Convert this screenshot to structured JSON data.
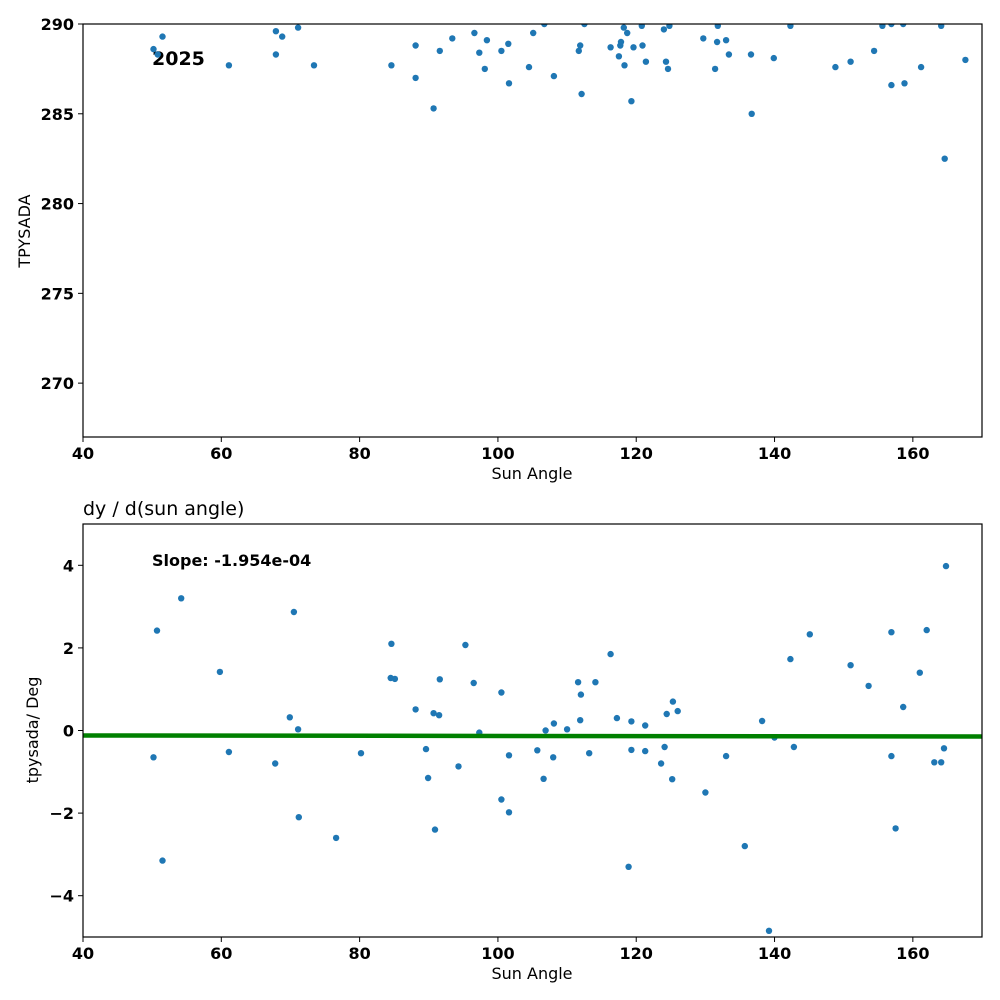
{
  "chart_data": [
    {
      "type": "scatter",
      "title": "",
      "xlabel": "Sun Angle",
      "ylabel": "TPYSADA",
      "xlim": [
        40,
        170
      ],
      "ylim": [
        267,
        290
      ],
      "xticks": [
        "40",
        "60",
        "80",
        "100",
        "120",
        "140",
        "160"
      ],
      "yticks": [
        "270",
        "275",
        "280",
        "285",
        "290"
      ],
      "annotation": "2025",
      "point_color": "#1f77b4",
      "grid": false,
      "points": [
        [
          50.2,
          288.6
        ],
        [
          50.8,
          288.3
        ],
        [
          51.5,
          289.3
        ],
        [
          61.1,
          287.7
        ],
        [
          67.9,
          289.6
        ],
        [
          67.9,
          288.3
        ],
        [
          68.8,
          289.3
        ],
        [
          71.1,
          289.8
        ],
        [
          73.4,
          287.7
        ],
        [
          84.6,
          287.7
        ],
        [
          88.1,
          288.8
        ],
        [
          88.1,
          287.0
        ],
        [
          90.7,
          285.3
        ],
        [
          91.6,
          288.5
        ],
        [
          93.4,
          289.2
        ],
        [
          96.6,
          289.5
        ],
        [
          97.3,
          288.4
        ],
        [
          98.1,
          287.5
        ],
        [
          98.4,
          289.1
        ],
        [
          100.5,
          288.5
        ],
        [
          101.5,
          288.9
        ],
        [
          101.6,
          286.7
        ],
        [
          104.5,
          287.6
        ],
        [
          105.1,
          289.5
        ],
        [
          106.7,
          290.0
        ],
        [
          108.1,
          287.1
        ],
        [
          111.7,
          288.5
        ],
        [
          111.9,
          288.8
        ],
        [
          112.1,
          286.1
        ],
        [
          112.5,
          290.0
        ],
        [
          116.3,
          288.7
        ],
        [
          117.5,
          288.2
        ],
        [
          117.7,
          288.8
        ],
        [
          117.8,
          289.0
        ],
        [
          118.2,
          289.8
        ],
        [
          118.3,
          287.7
        ],
        [
          118.7,
          289.5
        ],
        [
          119.3,
          285.7
        ],
        [
          119.6,
          288.7
        ],
        [
          120.8,
          289.9
        ],
        [
          120.9,
          288.8
        ],
        [
          121.4,
          287.9
        ],
        [
          124.0,
          289.7
        ],
        [
          124.3,
          287.9
        ],
        [
          124.6,
          287.5
        ],
        [
          124.8,
          289.9
        ],
        [
          129.7,
          289.2
        ],
        [
          131.4,
          287.5
        ],
        [
          131.7,
          289.0
        ],
        [
          131.8,
          289.9
        ],
        [
          133.0,
          289.1
        ],
        [
          133.4,
          288.3
        ],
        [
          136.6,
          288.3
        ],
        [
          136.7,
          285.0
        ],
        [
          139.9,
          288.1
        ],
        [
          142.3,
          289.9
        ],
        [
          148.8,
          287.6
        ],
        [
          151.0,
          287.9
        ],
        [
          154.4,
          288.5
        ],
        [
          155.6,
          289.9
        ],
        [
          156.9,
          290.0
        ],
        [
          156.9,
          286.6
        ],
        [
          158.6,
          290.0
        ],
        [
          158.8,
          286.7
        ],
        [
          161.2,
          287.6
        ],
        [
          164.1,
          289.9
        ],
        [
          164.6,
          282.5
        ],
        [
          167.6,
          288.0
        ]
      ]
    },
    {
      "type": "scatter",
      "title": "dy / d(sun angle)",
      "xlabel": "Sun Angle",
      "ylabel": "tpysada/ Deg",
      "xlim": [
        40,
        170
      ],
      "ylim": [
        -5,
        5
      ],
      "xticks": [
        "40",
        "60",
        "80",
        "100",
        "120",
        "140",
        "160"
      ],
      "yticks": [
        "−4",
        "−2",
        "0",
        "2",
        "4"
      ],
      "annotation": "Slope: -1.954e-04",
      "point_color": "#1f77b4",
      "fit_color": "#008000",
      "grid": false,
      "fit_line": [
        [
          40,
          -0.12
        ],
        [
          170,
          -0.145
        ]
      ],
      "points": [
        [
          50.2,
          -0.65
        ],
        [
          50.7,
          2.42
        ],
        [
          51.5,
          -3.15
        ],
        [
          54.2,
          3.2
        ],
        [
          59.8,
          1.42
        ],
        [
          61.1,
          -0.52
        ],
        [
          67.8,
          -0.8
        ],
        [
          69.9,
          0.32
        ],
        [
          70.5,
          2.87
        ],
        [
          71.1,
          0.03
        ],
        [
          71.2,
          -2.1
        ],
        [
          76.6,
          -2.6
        ],
        [
          80.2,
          -0.55
        ],
        [
          84.6,
          2.1
        ],
        [
          84.5,
          1.27
        ],
        [
          85.1,
          1.25
        ],
        [
          88.1,
          0.51
        ],
        [
          89.6,
          -0.45
        ],
        [
          89.9,
          -1.15
        ],
        [
          90.7,
          0.42
        ],
        [
          90.9,
          -2.4
        ],
        [
          91.5,
          0.37
        ],
        [
          91.6,
          1.24
        ],
        [
          94.3,
          -0.87
        ],
        [
          95.3,
          2.07
        ],
        [
          96.5,
          1.15
        ],
        [
          97.3,
          -0.05
        ],
        [
          100.5,
          0.92
        ],
        [
          100.5,
          -1.67
        ],
        [
          101.6,
          -0.6
        ],
        [
          101.6,
          -1.98
        ],
        [
          105.7,
          -0.48
        ],
        [
          106.6,
          -1.17
        ],
        [
          106.9,
          0.0
        ],
        [
          108.0,
          -0.65
        ],
        [
          108.1,
          0.17
        ],
        [
          110.0,
          0.03
        ],
        [
          111.6,
          1.17
        ],
        [
          111.9,
          0.25
        ],
        [
          112.0,
          0.87
        ],
        [
          113.2,
          -0.55
        ],
        [
          114.1,
          1.17
        ],
        [
          116.3,
          1.85
        ],
        [
          117.2,
          0.3
        ],
        [
          118.9,
          -3.3
        ],
        [
          119.3,
          0.22
        ],
        [
          119.3,
          -0.47
        ],
        [
          121.3,
          0.12
        ],
        [
          121.3,
          -0.5
        ],
        [
          123.6,
          -0.8
        ],
        [
          124.1,
          -0.4
        ],
        [
          124.4,
          0.4
        ],
        [
          125.2,
          -1.18
        ],
        [
          125.3,
          0.7
        ],
        [
          126.0,
          0.47
        ],
        [
          130.0,
          -1.5
        ],
        [
          133.0,
          -0.62
        ],
        [
          135.7,
          -2.8
        ],
        [
          138.2,
          0.23
        ],
        [
          139.2,
          -4.85
        ],
        [
          140.0,
          -0.17
        ],
        [
          142.3,
          1.73
        ],
        [
          142.8,
          -0.4
        ],
        [
          145.1,
          2.33
        ],
        [
          151.0,
          1.58
        ],
        [
          153.6,
          1.08
        ],
        [
          156.9,
          2.38
        ],
        [
          156.9,
          -0.62
        ],
        [
          157.5,
          -2.37
        ],
        [
          158.6,
          0.57
        ],
        [
          161.0,
          1.4
        ],
        [
          162.0,
          2.43
        ],
        [
          163.1,
          -0.77
        ],
        [
          164.1,
          -0.77
        ],
        [
          164.5,
          -0.43
        ],
        [
          164.8,
          3.98
        ]
      ]
    }
  ]
}
